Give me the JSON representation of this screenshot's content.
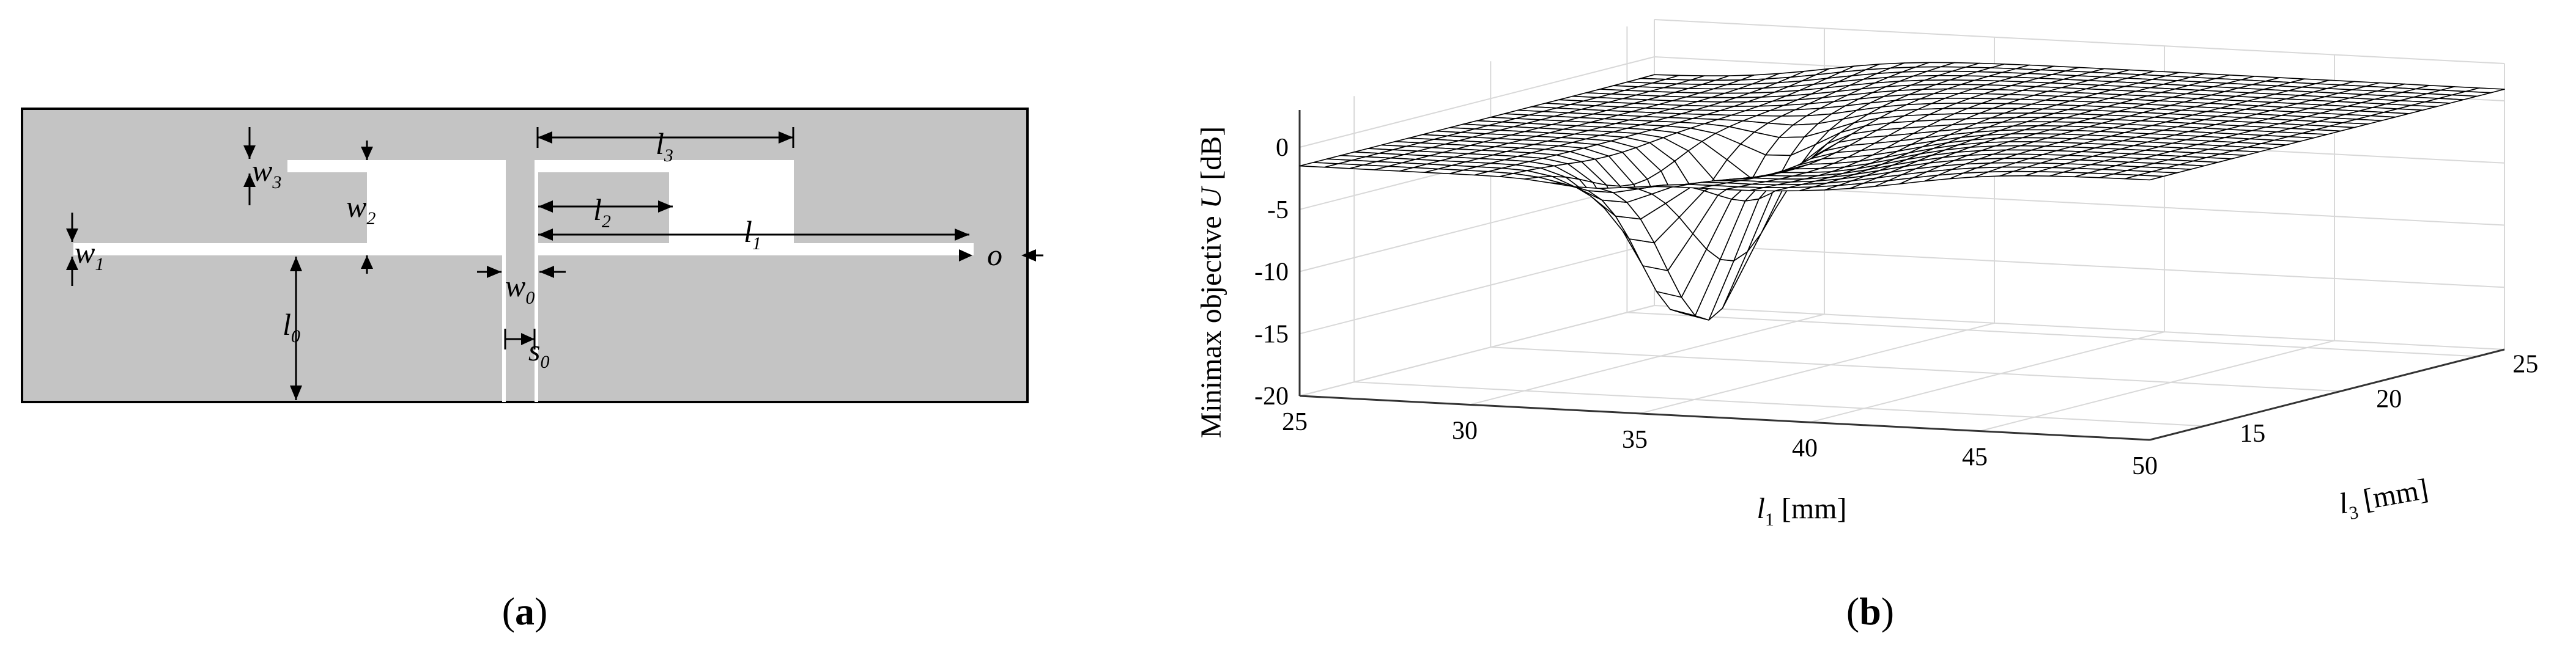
{
  "panel_a": {
    "caption": {
      "open": "(",
      "letter": "a",
      "close": ")"
    },
    "labels": {
      "w3": {
        "base": "w",
        "sub": "3"
      },
      "w2": {
        "base": "w",
        "sub": "2"
      },
      "w1": {
        "base": "w",
        "sub": "1"
      },
      "w0": {
        "base": "w",
        "sub": "0"
      },
      "s0": {
        "base": "s",
        "sub": "0"
      },
      "l0": {
        "base": "l",
        "sub": "0"
      },
      "l1": {
        "base": "l",
        "sub": "1"
      },
      "l2": {
        "base": "l",
        "sub": "2"
      },
      "l3": {
        "base": "l",
        "sub": "3"
      },
      "o": "o"
    },
    "colors": {
      "substrate": "#c4c4c4",
      "slot": "#ffffff",
      "outline": "#000000"
    }
  },
  "panel_b": {
    "caption": {
      "open": "(",
      "letter": "b",
      "close": ")"
    },
    "chart_data": {
      "type": "surface",
      "z_label_prefix": "Minimax objective ",
      "z_label_var": "U",
      "z_label_unit": " [dB]",
      "x_label_var": "l",
      "x_label_sub": "1",
      "x_label_unit": " [mm]",
      "y_label_var": "l",
      "y_label_sub": "3",
      "y_label_unit": " [mm]",
      "x_ticks": [
        "25",
        "30",
        "35",
        "40",
        "45",
        "50"
      ],
      "y_ticks": [
        "15",
        "20",
        "25"
      ],
      "z_ticks": [
        "0",
        "-5",
        "-10",
        "-15",
        "-20"
      ],
      "x_range": [
        25,
        50
      ],
      "y_range": [
        13,
        26
      ],
      "z_range": [
        -20,
        3
      ],
      "grid": true,
      "surface": {
        "plateau_db": -1.5,
        "dip_center_l1": 33.5,
        "dip_center_l3": 17,
        "dip_min_db": -15.5,
        "ridge_db": 1.2
      },
      "colors": {
        "mesh": "#000000",
        "face": "#ffffff",
        "grid": "#d8d8d8",
        "axis": "#333333"
      }
    }
  }
}
